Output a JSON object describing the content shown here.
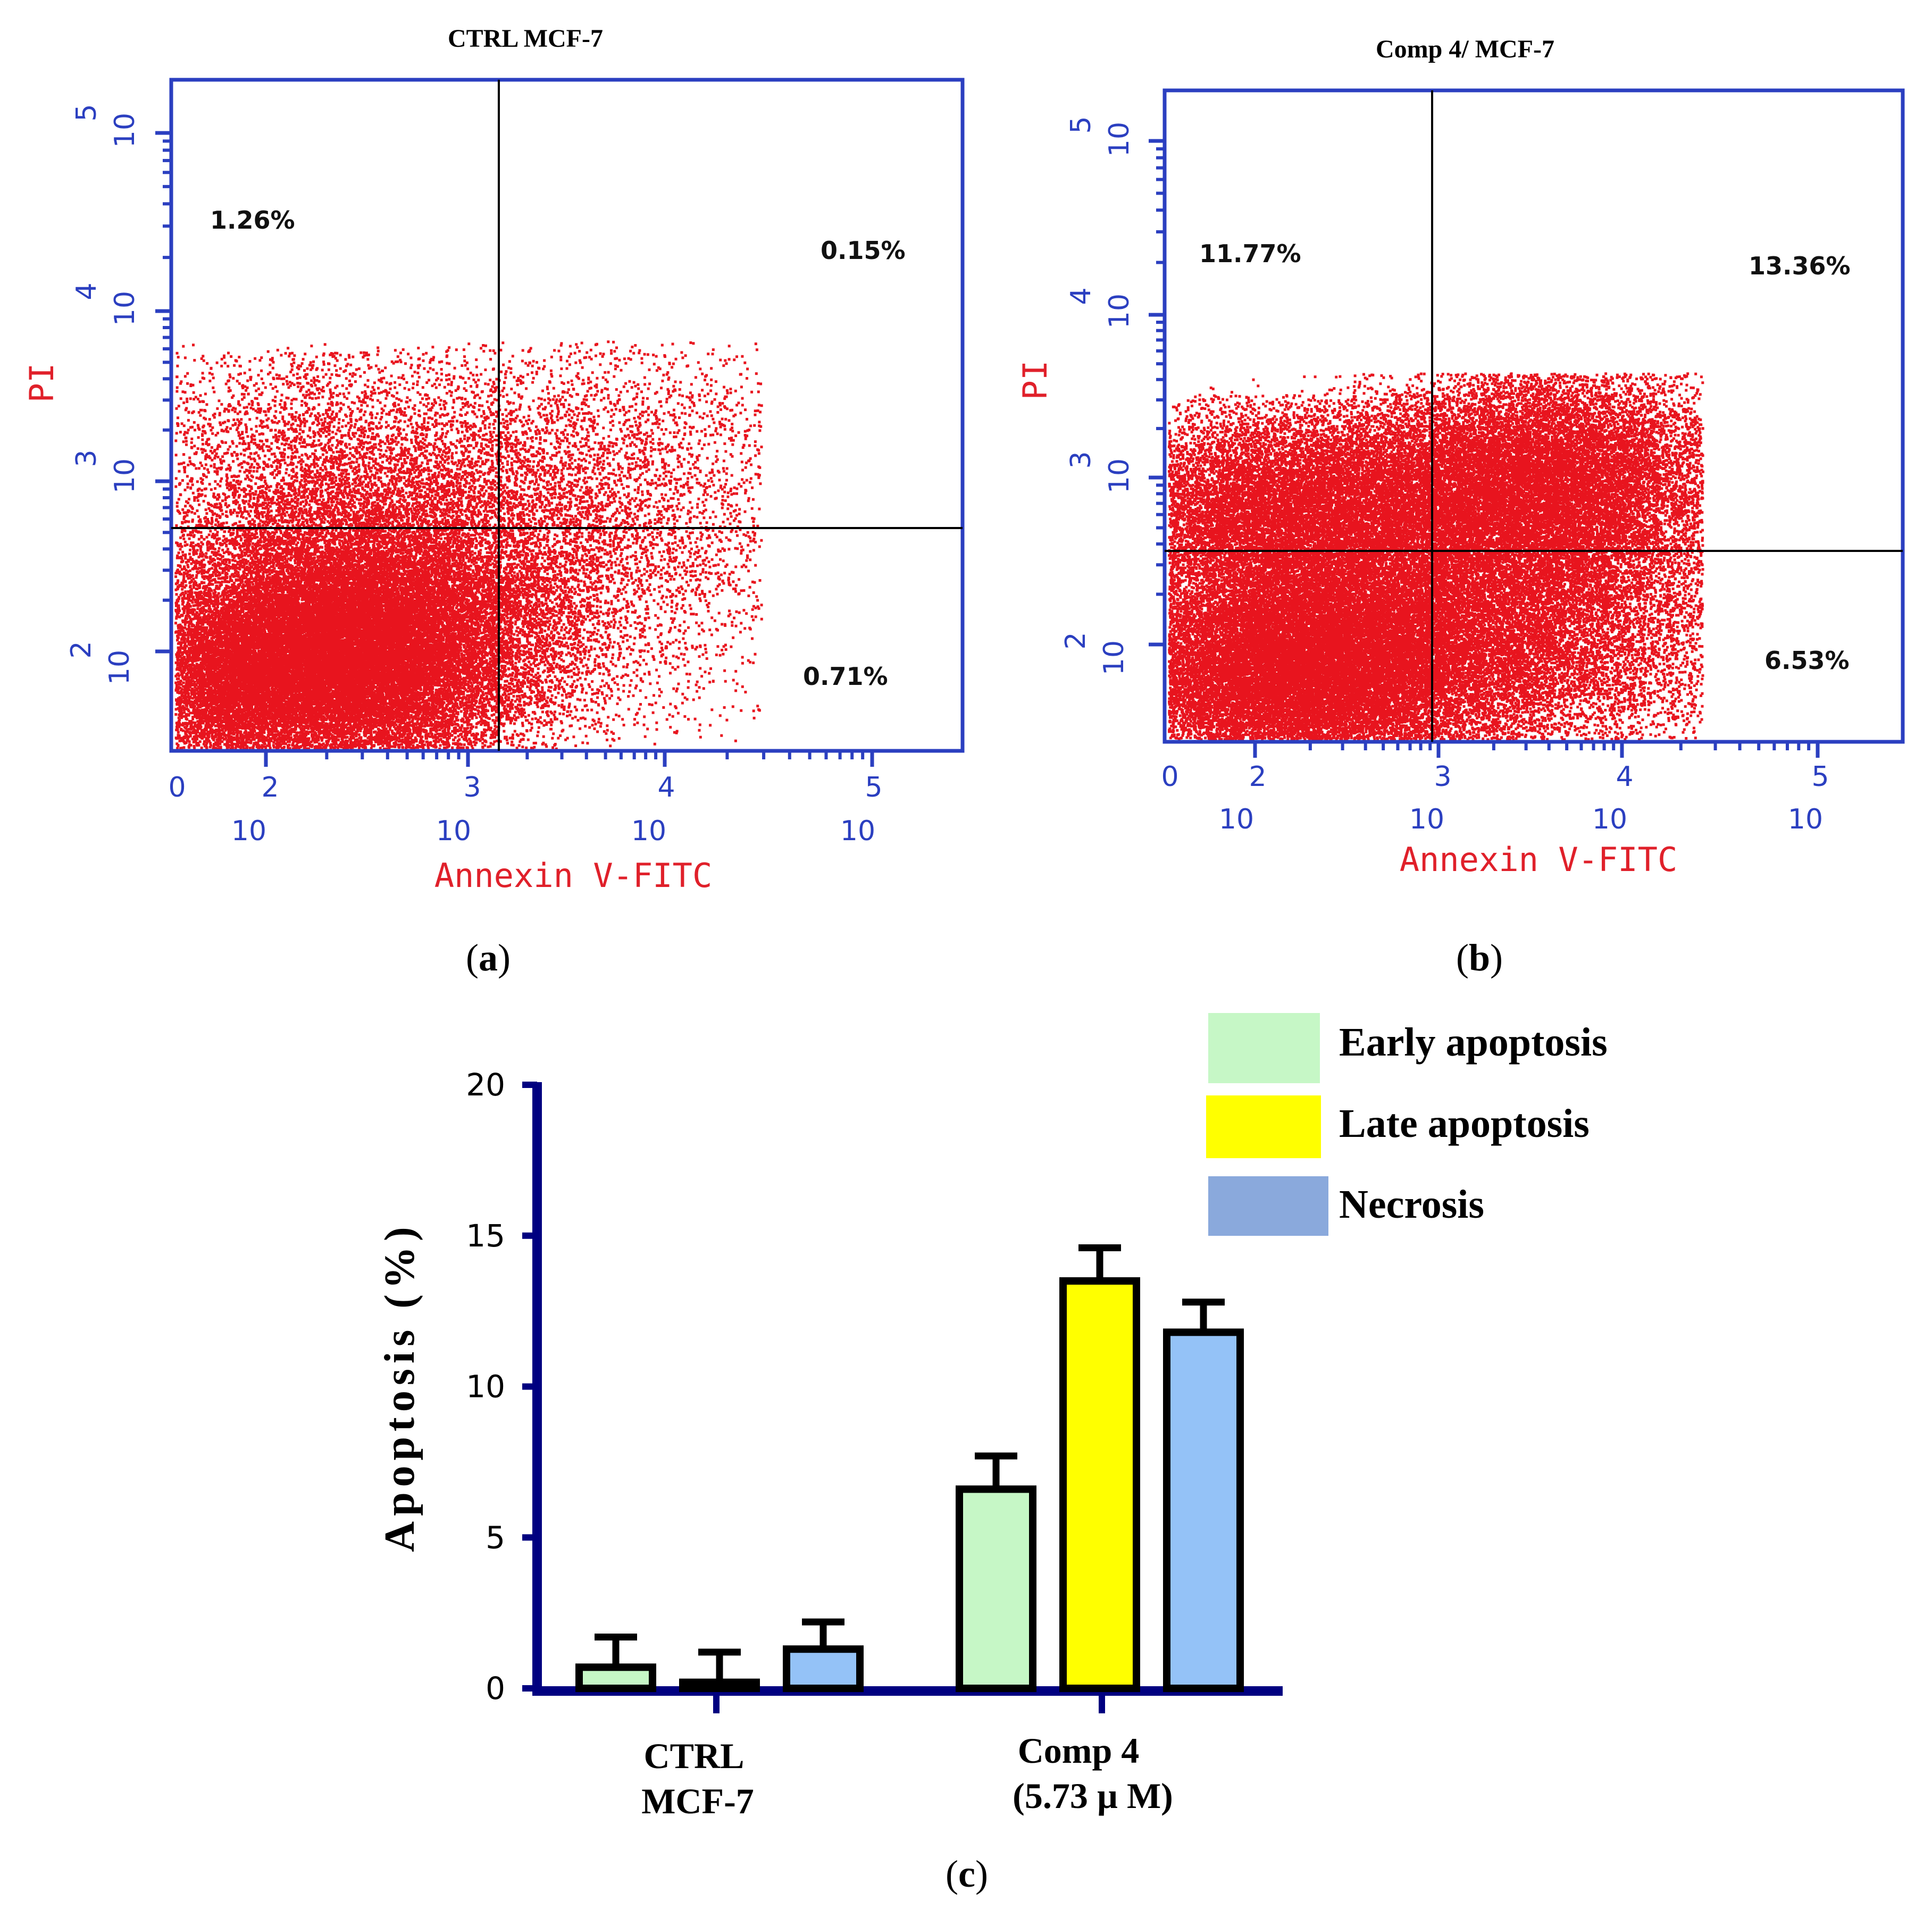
{
  "panels": {
    "a": {
      "caption_paren_open": "(",
      "caption_letter": "a",
      "caption_paren_close": ")"
    },
    "b": {
      "caption_paren_open": "(",
      "caption_letter": "b",
      "caption_paren_close": ")"
    },
    "c": {
      "caption_paren_open": "(",
      "caption_letter": "c",
      "caption_paren_close": ")"
    }
  },
  "colors": {
    "axis_blue": "#2b3fc0",
    "label_red": "#e0202a",
    "dot_red": "#e8141e",
    "bar_axis": "#000080",
    "early": "#c6f7c6",
    "late": "#ffff00",
    "necrosis": "#94c2f7"
  },
  "chart_data": [
    {
      "type": "scatter",
      "id": "a",
      "title": "CTRL MCF-7",
      "xlabel": "Annexin V-FITC",
      "ylabel": "PI",
      "xscale": "log",
      "yscale": "log",
      "x_ticks": [
        {
          "base": "10",
          "exp": "0",
          "show_base": false
        },
        {
          "base": "10",
          "exp": "2",
          "show_base": true
        },
        {
          "base": "10",
          "exp": "3",
          "show_base": true
        },
        {
          "base": "10",
          "exp": "4",
          "show_base": true
        },
        {
          "base": "10",
          "exp": "5",
          "show_base": true
        }
      ],
      "y_ticks": [
        {
          "base": "10",
          "exp": "2"
        },
        {
          "base": "10",
          "exp": "3"
        },
        {
          "base": "10",
          "exp": "4"
        },
        {
          "base": "10",
          "exp": "5"
        }
      ],
      "quadrants": {
        "upper_left": "1.26%",
        "upper_right": "0.15%",
        "lower_right": "0.71%"
      },
      "gate_x_log": 3.0,
      "gate_y_log": 2.75
    },
    {
      "type": "scatter",
      "id": "b",
      "title": "Comp 4/ MCF-7",
      "xlabel": "Annexin V-FITC",
      "ylabel": "PI",
      "xscale": "log",
      "yscale": "log",
      "x_ticks": [
        {
          "base": "10",
          "exp": "0",
          "show_base": false
        },
        {
          "base": "10",
          "exp": "2",
          "show_base": true
        },
        {
          "base": "10",
          "exp": "3",
          "show_base": true
        },
        {
          "base": "10",
          "exp": "4",
          "show_base": true
        },
        {
          "base": "10",
          "exp": "5",
          "show_base": true
        }
      ],
      "y_ticks": [
        {
          "base": "10",
          "exp": "2"
        },
        {
          "base": "10",
          "exp": "3"
        },
        {
          "base": "10",
          "exp": "4"
        },
        {
          "base": "10",
          "exp": "5"
        }
      ],
      "quadrants": {
        "upper_left": "11.77%",
        "upper_right": "13.36%",
        "lower_right": "6.53%"
      },
      "gate_x_log": 3.0,
      "gate_y_log": 2.6
    },
    {
      "type": "bar",
      "id": "c",
      "categories": [
        [
          "CTRL",
          "MCF-7"
        ],
        [
          "Comp 4",
          "(5.73 µ M)"
        ]
      ],
      "ylabel": "Apoptosis (%)",
      "ylim": [
        0,
        20
      ],
      "yticks": [
        "0",
        "5",
        "10",
        "15",
        "20"
      ],
      "series": [
        {
          "name": "Early apoptosis",
          "values": [
            0.7,
            6.6
          ],
          "errors": [
            1.0,
            1.1
          ]
        },
        {
          "name": "Late apoptosis",
          "values": [
            0.2,
            13.5
          ],
          "errors": [
            1.0,
            1.1
          ]
        },
        {
          "name": "Necrosis",
          "values": [
            1.3,
            11.8
          ],
          "errors": [
            0.9,
            1.0
          ]
        }
      ]
    }
  ]
}
